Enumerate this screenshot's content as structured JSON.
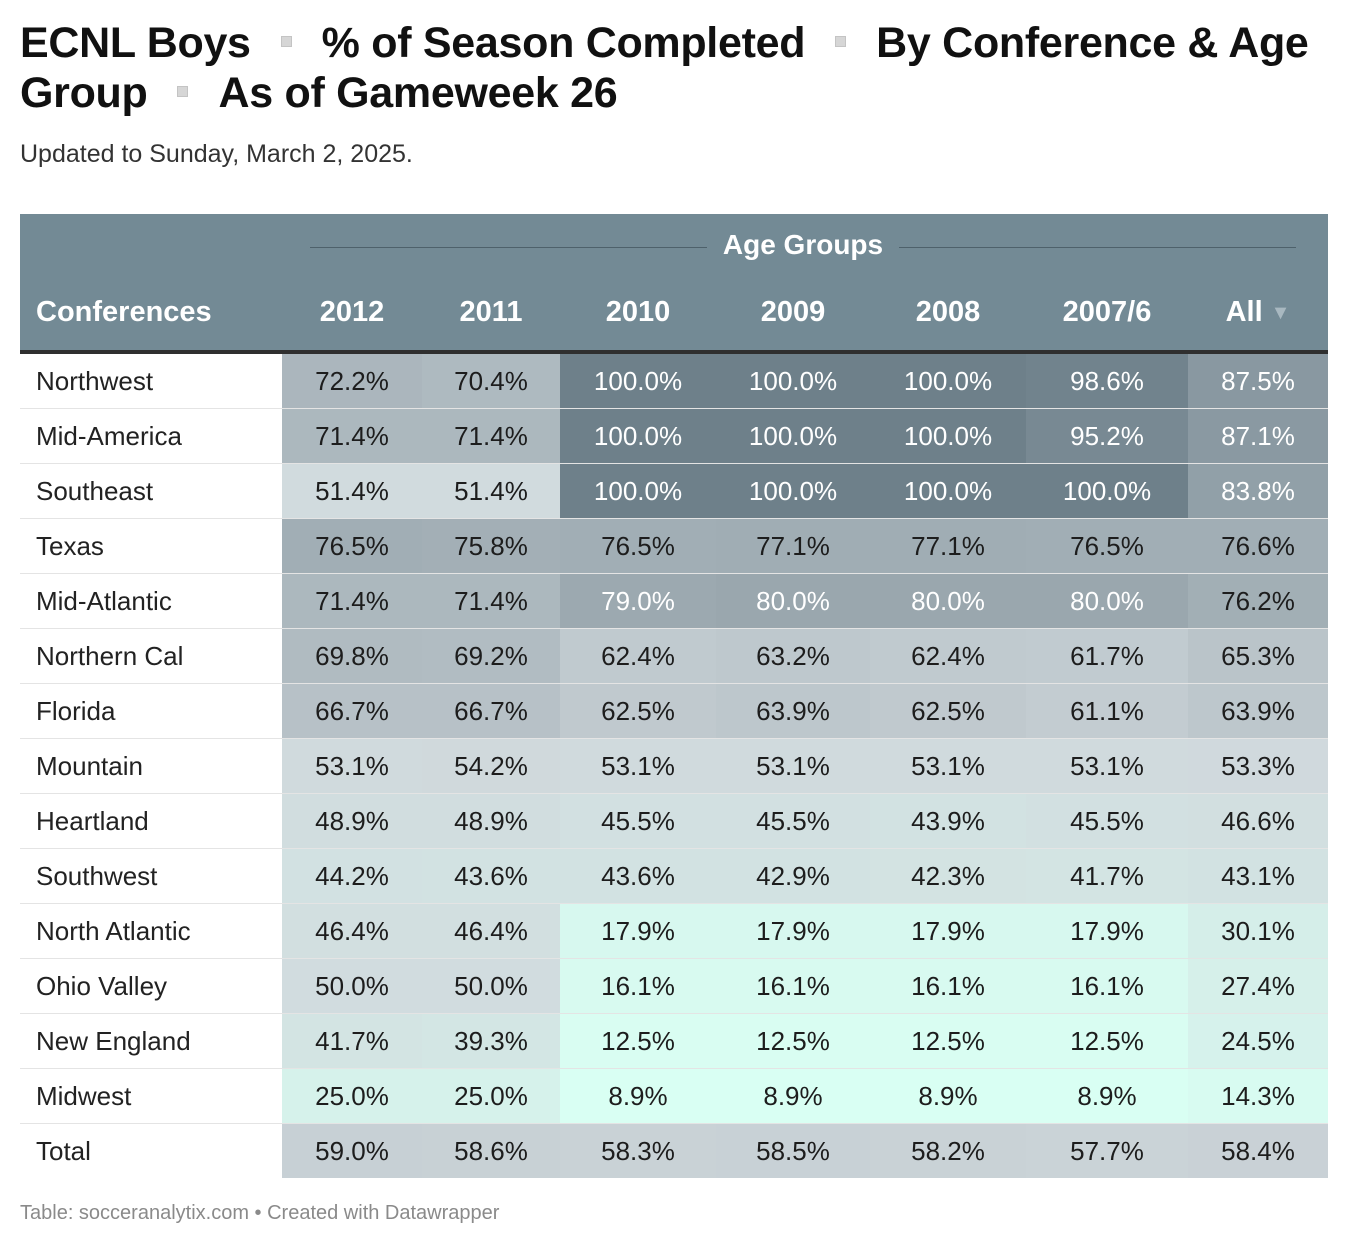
{
  "title_parts": [
    "ECNL Boys",
    "% of Season Completed",
    "By Conference & Age Group",
    "As of Gameweek 26"
  ],
  "subtitle": "Updated to Sunday, March 2, 2025.",
  "footer": "Table: socceranalytix.com • Created with Datawrapper",
  "colors": {
    "header_bg": "#738a95",
    "low": "#d9fff3",
    "mid": "#d0d8dc",
    "high": "#6e808a"
  },
  "chart_data": {
    "type": "table",
    "group_label": "Age Groups",
    "columns": [
      "Conferences",
      "2012",
      "2011",
      "2010",
      "2009",
      "2008",
      "2007/6",
      "All"
    ],
    "sort_indicator": "▼",
    "rows": [
      {
        "conference": "Northwest",
        "values": [
          "72.2%",
          "70.4%",
          "100.0%",
          "100.0%",
          "100.0%",
          "98.6%",
          "87.5%"
        ]
      },
      {
        "conference": "Mid-America",
        "values": [
          "71.4%",
          "71.4%",
          "100.0%",
          "100.0%",
          "100.0%",
          "95.2%",
          "87.1%"
        ]
      },
      {
        "conference": "Southeast",
        "values": [
          "51.4%",
          "51.4%",
          "100.0%",
          "100.0%",
          "100.0%",
          "100.0%",
          "83.8%"
        ]
      },
      {
        "conference": "Texas",
        "values": [
          "76.5%",
          "75.8%",
          "76.5%",
          "77.1%",
          "77.1%",
          "76.5%",
          "76.6%"
        ]
      },
      {
        "conference": "Mid-Atlantic",
        "values": [
          "71.4%",
          "71.4%",
          "79.0%",
          "80.0%",
          "80.0%",
          "80.0%",
          "76.2%"
        ]
      },
      {
        "conference": "Northern Cal",
        "values": [
          "69.8%",
          "69.2%",
          "62.4%",
          "63.2%",
          "62.4%",
          "61.7%",
          "65.3%"
        ]
      },
      {
        "conference": "Florida",
        "values": [
          "66.7%",
          "66.7%",
          "62.5%",
          "63.9%",
          "62.5%",
          "61.1%",
          "63.9%"
        ]
      },
      {
        "conference": "Mountain",
        "values": [
          "53.1%",
          "54.2%",
          "53.1%",
          "53.1%",
          "53.1%",
          "53.1%",
          "53.3%"
        ]
      },
      {
        "conference": "Heartland",
        "values": [
          "48.9%",
          "48.9%",
          "45.5%",
          "45.5%",
          "43.9%",
          "45.5%",
          "46.6%"
        ]
      },
      {
        "conference": "Southwest",
        "values": [
          "44.2%",
          "43.6%",
          "43.6%",
          "42.9%",
          "42.3%",
          "41.7%",
          "43.1%"
        ]
      },
      {
        "conference": "North Atlantic",
        "values": [
          "46.4%",
          "46.4%",
          "17.9%",
          "17.9%",
          "17.9%",
          "17.9%",
          "30.1%"
        ]
      },
      {
        "conference": "Ohio Valley",
        "values": [
          "50.0%",
          "50.0%",
          "16.1%",
          "16.1%",
          "16.1%",
          "16.1%",
          "27.4%"
        ]
      },
      {
        "conference": "New England",
        "values": [
          "41.7%",
          "39.3%",
          "12.5%",
          "12.5%",
          "12.5%",
          "12.5%",
          "24.5%"
        ]
      },
      {
        "conference": "Midwest",
        "values": [
          "25.0%",
          "25.0%",
          "8.9%",
          "8.9%",
          "8.9%",
          "8.9%",
          "14.3%"
        ]
      },
      {
        "conference": "Total",
        "values": [
          "59.0%",
          "58.6%",
          "58.3%",
          "58.5%",
          "58.2%",
          "57.7%",
          "58.4%"
        ]
      }
    ]
  }
}
